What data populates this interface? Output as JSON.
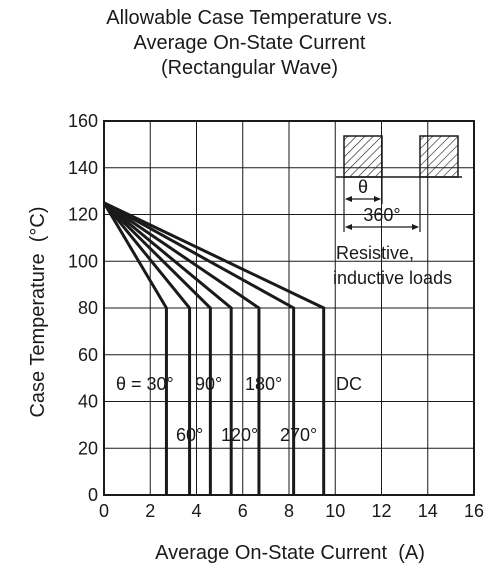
{
  "chart_data": {
    "type": "line",
    "title": [
      "Allowable Case Temperature vs.",
      "Average On-State Current",
      "(Rectangular Wave)"
    ],
    "xlabel": "Average On-State Current  (A)",
    "ylabel": "Case Temperature  (°C)",
    "xlim": [
      0,
      16
    ],
    "ylim": [
      0,
      160
    ],
    "xticks": [
      0,
      2,
      4,
      6,
      8,
      10,
      12,
      14,
      16
    ],
    "yticks": [
      0,
      20,
      40,
      60,
      80,
      100,
      120,
      140,
      160
    ],
    "grid": true,
    "series": [
      {
        "name": "θ = 30°",
        "points": [
          [
            0,
            125
          ],
          [
            2.7,
            80
          ],
          [
            2.7,
            0
          ]
        ]
      },
      {
        "name": "60°",
        "points": [
          [
            0,
            125
          ],
          [
            3.7,
            80
          ],
          [
            3.7,
            0
          ]
        ]
      },
      {
        "name": "90°",
        "points": [
          [
            0,
            125
          ],
          [
            4.6,
            80
          ],
          [
            4.6,
            0
          ]
        ]
      },
      {
        "name": "120°",
        "points": [
          [
            0,
            125
          ],
          [
            5.5,
            80
          ],
          [
            5.5,
            0
          ]
        ]
      },
      {
        "name": "180°",
        "points": [
          [
            0,
            125
          ],
          [
            6.7,
            80
          ],
          [
            6.7,
            0
          ]
        ]
      },
      {
        "name": "270°",
        "points": [
          [
            0,
            125
          ],
          [
            8.2,
            80
          ],
          [
            8.2,
            0
          ]
        ]
      },
      {
        "name": "DC",
        "points": [
          [
            0,
            125
          ],
          [
            9.5,
            80
          ],
          [
            9.5,
            0
          ]
        ]
      }
    ],
    "annotations": {
      "inset_theta": "θ",
      "inset_period": "360°",
      "load_note": [
        "Resistive,",
        "inductive loads"
      ]
    }
  }
}
